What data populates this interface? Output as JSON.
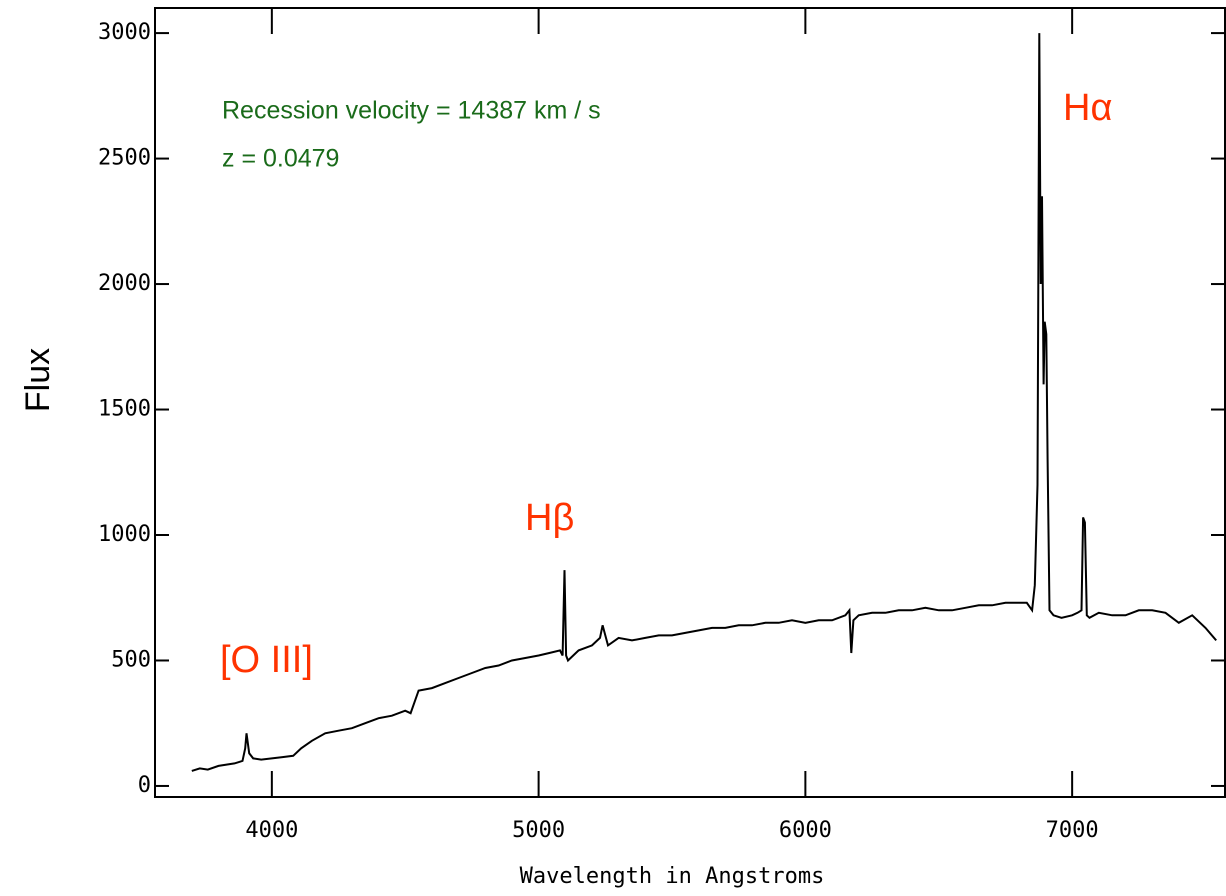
{
  "chart_data": {
    "type": "line",
    "ylabel": "Flux",
    "xlabel": "Wavelength in Angstroms",
    "x": [
      3700,
      3730,
      3760,
      3800,
      3830,
      3860,
      3890,
      3900,
      3905,
      3915,
      3930,
      3960,
      4000,
      4040,
      4080,
      4110,
      4150,
      4200,
      4250,
      4300,
      4350,
      4400,
      4450,
      4500,
      4520,
      4550,
      4600,
      4650,
      4700,
      4750,
      4800,
      4850,
      4900,
      4950,
      5000,
      5040,
      5080,
      5090,
      5097,
      5103,
      5110,
      5150,
      5200,
      5230,
      5240,
      5260,
      5300,
      5350,
      5400,
      5450,
      5500,
      5550,
      5600,
      5650,
      5700,
      5750,
      5800,
      5850,
      5900,
      5950,
      6000,
      6050,
      6100,
      6150,
      6165,
      6172,
      6180,
      6200,
      6250,
      6300,
      6350,
      6400,
      6450,
      6500,
      6550,
      6600,
      6650,
      6700,
      6750,
      6800,
      6830,
      6850,
      6860,
      6870,
      6877,
      6882,
      6887,
      6893,
      6897,
      6903,
      6908,
      6915,
      6930,
      6960,
      7000,
      7020,
      7035,
      7041,
      7048,
      7055,
      7065,
      7100,
      7150,
      7200,
      7250,
      7300,
      7350,
      7400,
      7450,
      7500,
      7540
    ],
    "values": [
      60,
      70,
      65,
      80,
      85,
      90,
      100,
      150,
      210,
      130,
      110,
      105,
      110,
      115,
      120,
      150,
      180,
      210,
      220,
      230,
      250,
      270,
      280,
      300,
      290,
      380,
      390,
      410,
      430,
      450,
      470,
      480,
      500,
      510,
      520,
      530,
      540,
      520,
      860,
      520,
      500,
      540,
      560,
      590,
      640,
      560,
      590,
      580,
      590,
      600,
      600,
      610,
      620,
      630,
      630,
      640,
      640,
      650,
      650,
      660,
      650,
      660,
      660,
      680,
      700,
      530,
      660,
      680,
      690,
      690,
      700,
      700,
      710,
      700,
      700,
      710,
      720,
      720,
      730,
      730,
      730,
      700,
      800,
      1200,
      3000,
      2000,
      2350,
      1600,
      1850,
      1800,
      1300,
      700,
      680,
      670,
      680,
      690,
      700,
      1070,
      1050,
      680,
      670,
      690,
      680,
      680,
      700,
      700,
      690,
      650,
      680,
      630,
      580
    ],
    "color": "#000000",
    "xlim": [
      3562,
      7573
    ],
    "ylim": [
      -44,
      3100
    ],
    "xticks": [
      4000,
      5000,
      6000,
      7000
    ],
    "yticks": [
      0,
      500,
      1000,
      1500,
      2000,
      2500,
      3000
    ],
    "annotations": [
      {
        "text": "Recession velocity = 14387 km / s",
        "color": "#1a6b1a"
      },
      {
        "text": "z = 0.0479",
        "color": "#1a6b1a"
      },
      {
        "text": "[O III]",
        "color": "#ff3300"
      },
      {
        "text": "Hβ",
        "color": "#ff3300"
      },
      {
        "text": "Hα",
        "color": "#ff3300"
      }
    ]
  }
}
